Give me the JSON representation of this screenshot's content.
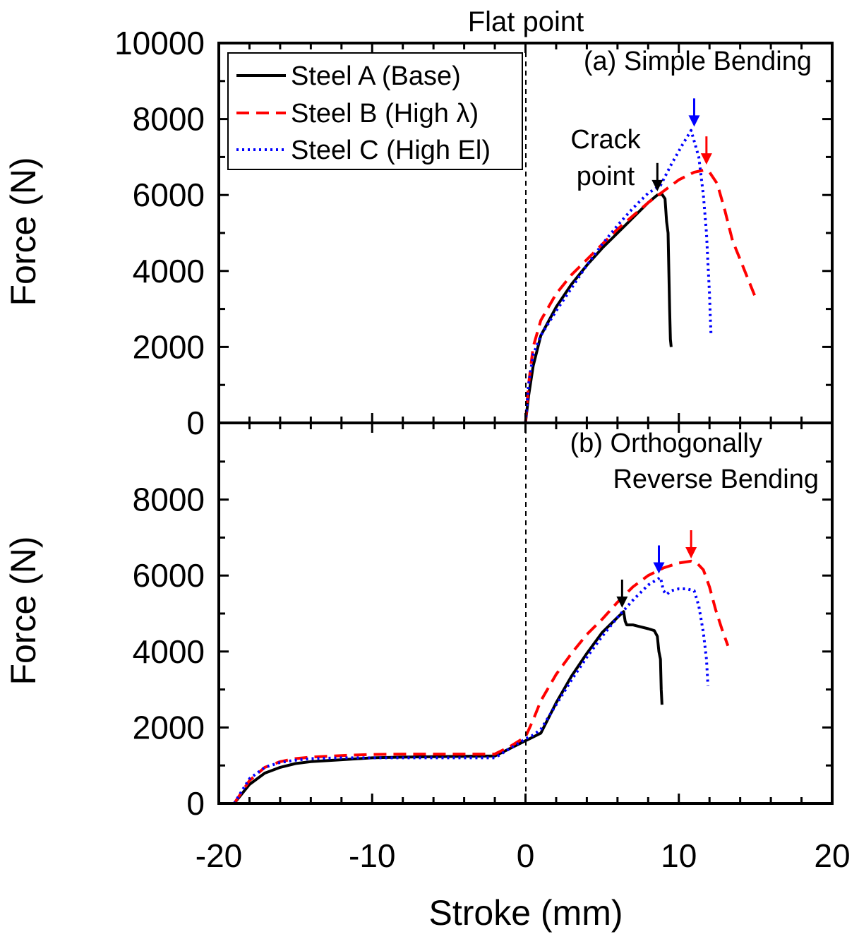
{
  "flat_point_label": "Flat point",
  "crack_point_label": [
    "Crack",
    "point"
  ],
  "legend": [
    {
      "key": "steel_a",
      "label": "Steel A (Base)"
    },
    {
      "key": "steel_b",
      "label": "Steel B (High λ)"
    },
    {
      "key": "steel_c",
      "label": "Steel C (High El)"
    }
  ],
  "chart_data": [
    {
      "panel": "a",
      "type": "line",
      "title": "(a) Simple Bending",
      "xlabel": "",
      "ylabel": "Force (N)",
      "xlim": [
        -20,
        20
      ],
      "ylim": [
        0,
        10000
      ],
      "yticks": [
        0,
        2000,
        4000,
        6000,
        8000,
        10000
      ],
      "ytick_labels": [
        "0",
        "2000",
        "4000",
        "6000",
        "8000",
        "10000"
      ],
      "grid": false,
      "legend_position": "top-left",
      "series": [
        {
          "key": "steel_a",
          "name": "Steel A (Base)",
          "color": "#000000",
          "style": "solid",
          "x": [
            0,
            0.2,
            0.5,
            1,
            2,
            3,
            4,
            5,
            6,
            7,
            8,
            8.6,
            8.9,
            9.1,
            9.2,
            9.3,
            9.35,
            9.4,
            9.45,
            9.5
          ],
          "y": [
            0,
            700,
            1500,
            2300,
            3050,
            3650,
            4150,
            4600,
            5000,
            5400,
            5800,
            6000,
            6020,
            5900,
            5300,
            5000,
            4000,
            3000,
            2200,
            2000
          ]
        },
        {
          "key": "steel_b",
          "name": "Steel B (High λ)",
          "color": "#ff0000",
          "style": "dashed",
          "x": [
            0,
            0.2,
            0.5,
            1,
            2,
            3,
            4,
            5,
            6,
            7,
            8,
            9,
            10,
            11,
            11.6,
            12,
            12.5,
            13,
            13.5,
            14,
            14.5,
            15
          ],
          "y": [
            0,
            1000,
            2000,
            2700,
            3400,
            3900,
            4300,
            4700,
            5100,
            5450,
            5800,
            6100,
            6400,
            6600,
            6650,
            6600,
            6300,
            5600,
            4800,
            4300,
            3800,
            3300
          ]
        },
        {
          "key": "steel_c",
          "name": "Steel C (High El)",
          "color": "#0000ff",
          "style": "dotted",
          "x": [
            0,
            0.2,
            0.5,
            1,
            2,
            3,
            4,
            5,
            6,
            7,
            8,
            8.8,
            9.5,
            10.2,
            10.8,
            11.3,
            11.6,
            11.8,
            11.9,
            12.0,
            12.05,
            12.1
          ],
          "y": [
            0,
            1000,
            1800,
            2300,
            2950,
            3550,
            4150,
            4700,
            5200,
            5650,
            6050,
            6250,
            6800,
            7300,
            7700,
            7000,
            6000,
            5000,
            4200,
            3400,
            2800,
            2300
          ]
        }
      ]
    },
    {
      "panel": "b",
      "type": "line",
      "title": [
        "(b) Orthogonally",
        "Reverse Bending"
      ],
      "xlabel": "Stroke (mm)",
      "ylabel": "Force (N)",
      "xlim": [
        -20,
        20
      ],
      "ylim": [
        0,
        10000
      ],
      "xticks": [
        -20,
        -10,
        0,
        10,
        20
      ],
      "xtick_labels": [
        "-20",
        "-10",
        "0",
        "10",
        "20"
      ],
      "yticks": [
        0,
        2000,
        4000,
        6000,
        8000
      ],
      "ytick_labels": [
        "0",
        "2000",
        "4000",
        "6000",
        "8000"
      ],
      "grid": false,
      "series": [
        {
          "key": "steel_a",
          "name": "Steel A (Base)",
          "color": "#000000",
          "style": "solid",
          "x": [
            -19,
            -18,
            -17,
            -16,
            -15,
            -14,
            -12,
            -10,
            -8,
            -6,
            -4,
            -2,
            -1,
            0,
            0.5,
            1,
            2,
            3,
            4,
            5,
            6,
            6.4,
            6.5,
            6.6,
            7,
            7.5,
            8,
            8.4,
            8.6,
            8.7,
            8.8,
            8.85,
            8.9
          ],
          "y": [
            0,
            500,
            800,
            950,
            1050,
            1100,
            1150,
            1200,
            1220,
            1230,
            1240,
            1250,
            1450,
            1650,
            1750,
            1850,
            2650,
            3350,
            3950,
            4500,
            4900,
            5050,
            4800,
            4700,
            4700,
            4650,
            4600,
            4550,
            4400,
            4000,
            3800,
            3000,
            2600
          ]
        },
        {
          "key": "steel_b",
          "name": "Steel B (High λ)",
          "color": "#ff0000",
          "style": "dashed",
          "x": [
            -19,
            -18,
            -17,
            -16,
            -15,
            -14,
            -12,
            -10,
            -8,
            -6,
            -4,
            -2,
            -1,
            0,
            0.5,
            1,
            2,
            3,
            4,
            5,
            6,
            7,
            8,
            9,
            10,
            10.8,
            11.2,
            11.6,
            12,
            12.4,
            12.8,
            13.2
          ],
          "y": [
            0,
            600,
            950,
            1100,
            1180,
            1220,
            1260,
            1290,
            1300,
            1300,
            1300,
            1300,
            1500,
            1750,
            2200,
            2700,
            3400,
            3950,
            4450,
            4850,
            5300,
            5700,
            6000,
            6200,
            6330,
            6380,
            6320,
            6150,
            5700,
            5100,
            4600,
            4150
          ]
        },
        {
          "key": "steel_c",
          "name": "Steel C (High El)",
          "color": "#0000ff",
          "style": "dotted",
          "x": [
            -19,
            -18,
            -17,
            -16,
            -15,
            -14,
            -12,
            -10,
            -8,
            -6,
            -4,
            -2,
            -1,
            0,
            0.5,
            1,
            2,
            3,
            4,
            5,
            6,
            7,
            8,
            8.8,
            9.0,
            9.2,
            9.5,
            10,
            10.5,
            11,
            11.3,
            11.6,
            11.8,
            11.9
          ],
          "y": [
            0,
            650,
            950,
            1080,
            1140,
            1180,
            1200,
            1200,
            1200,
            1200,
            1200,
            1200,
            1450,
            1700,
            1800,
            1950,
            2600,
            3250,
            3850,
            4400,
            4900,
            5350,
            5750,
            5950,
            5600,
            5500,
            5600,
            5650,
            5650,
            5600,
            5200,
            4500,
            3800,
            3100
          ]
        }
      ]
    }
  ],
  "arrows": [
    {
      "panel": "a",
      "key": "steel_a",
      "color": "#000000",
      "x": 8.6,
      "y": 6100
    },
    {
      "panel": "a",
      "key": "steel_c",
      "color": "#0000ff",
      "x": 11.0,
      "y": 7800
    },
    {
      "panel": "a",
      "key": "steel_b",
      "color": "#ff0000",
      "x": 11.8,
      "y": 6800
    },
    {
      "panel": "b",
      "key": "steel_a",
      "color": "#000000",
      "x": 6.3,
      "y": 5150
    },
    {
      "panel": "b",
      "key": "steel_c",
      "color": "#0000ff",
      "x": 8.7,
      "y": 6050
    },
    {
      "panel": "b",
      "key": "steel_b",
      "color": "#ff0000",
      "x": 10.8,
      "y": 6450
    }
  ]
}
